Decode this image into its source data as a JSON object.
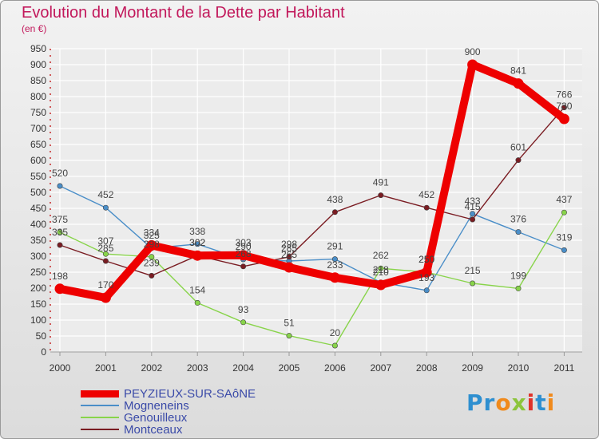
{
  "header": {
    "title": "Evolution du Montant de la Dette par Habitant",
    "subtitle": "(en €)"
  },
  "chart_data": {
    "type": "line",
    "title": "Evolution du Montant de la Dette par Habitant",
    "subtitle": "(en €)",
    "x": [
      "2000",
      "2001",
      "2002",
      "2003",
      "2004",
      "2005",
      "2006",
      "2007",
      "2008",
      "2009",
      "2010",
      "2011"
    ],
    "ylim": [
      0,
      950
    ],
    "yticks": [
      0,
      50,
      100,
      150,
      200,
      250,
      300,
      350,
      400,
      450,
      500,
      550,
      600,
      650,
      700,
      750,
      800,
      850,
      900,
      950
    ],
    "grid": true,
    "legend_position": "bottom-left",
    "series": [
      {
        "name": "PEYZIEUX-SUR-SAôNE",
        "color": "#ee0000",
        "values": [
          198,
          170,
          334,
          302,
          303,
          265,
          233,
          210,
          250,
          900,
          841,
          730
        ]
      },
      {
        "name": "Mogneneins",
        "color": "#4a8ec8",
        "values": [
          520,
          452,
          325,
          338,
          290,
          285,
          291,
          218,
          193,
          433,
          376,
          319
        ]
      },
      {
        "name": "Genouilleux",
        "color": "#88d44a",
        "values": [
          375,
          307,
          298,
          154,
          93,
          51,
          20,
          262,
          250,
          215,
          199,
          437
        ]
      },
      {
        "name": "Montceaux",
        "color": "#7a1c22",
        "values": [
          335,
          285,
          239,
          302,
          268,
          298,
          438,
          491,
          452,
          415,
          601,
          766
        ]
      }
    ]
  },
  "logo": {
    "letters": [
      {
        "ch": "P",
        "color": "#2e8fd0"
      },
      {
        "ch": "r",
        "color": "#2e8fd0"
      },
      {
        "ch": "o",
        "color": "#f08a1c"
      },
      {
        "ch": "x",
        "color": "#8cc43c"
      },
      {
        "ch": "i",
        "color": "#e0322a"
      },
      {
        "ch": "t",
        "color": "#2e8fd0"
      },
      {
        "ch": "i",
        "color": "#f08a1c"
      }
    ]
  }
}
